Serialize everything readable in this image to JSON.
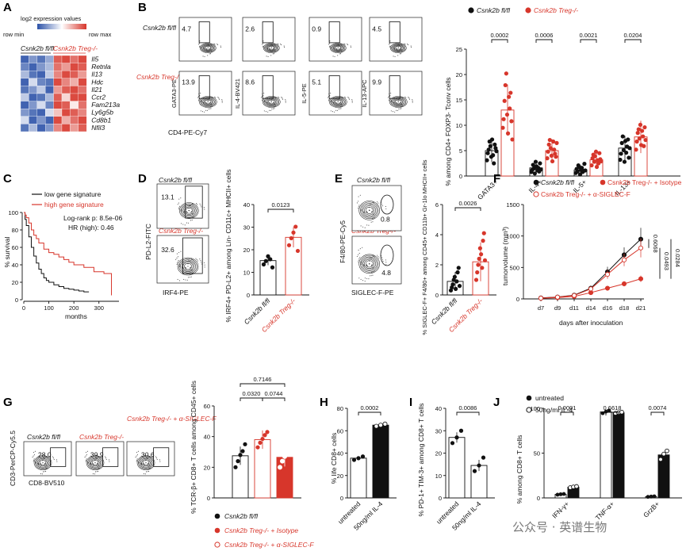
{
  "colors": {
    "red": "#d7362b",
    "pink": "#ef8a80",
    "black": "#111111",
    "blue": "#2c52a8",
    "lblue": "#a7b8e0",
    "lred": "#e99a93"
  },
  "panelA": {
    "letter": "A",
    "legend_title": "log2 expression values",
    "row_min": "row min",
    "row_max": "row max",
    "group1": "Csnk2b fl/fl",
    "group2": "Csnk2b Treg-/-",
    "genes": [
      "Il5",
      "Retnla",
      "Il13",
      "Hdc",
      "Il21",
      "Ccr2",
      "Fam213a",
      "Ly6g5b",
      "Cd8b1",
      "Nfil3"
    ],
    "matrix": [
      [
        -0.9,
        -0.6,
        -0.8,
        -0.5,
        0.8,
        0.9,
        0.7,
        0.9
      ],
      [
        -0.7,
        -0.9,
        -0.6,
        -0.4,
        0.7,
        0.5,
        0.9,
        0.8
      ],
      [
        -0.4,
        -0.8,
        -0.9,
        -0.3,
        0.6,
        0.9,
        0.8,
        0.5
      ],
      [
        -0.9,
        -0.2,
        -0.7,
        -0.8,
        0.9,
        0.6,
        0.4,
        0.9
      ],
      [
        -0.8,
        -0.6,
        -0.3,
        -0.9,
        0.5,
        0.8,
        0.9,
        0.7
      ],
      [
        -0.3,
        -0.9,
        -0.8,
        -0.4,
        0.8,
        0.2,
        0.9,
        0.9
      ],
      [
        -0.9,
        -0.6,
        -0.2,
        -0.7,
        0.9,
        0.8,
        0.1,
        0.7
      ],
      [
        -0.6,
        -0.8,
        -0.9,
        -0.2,
        0.3,
        0.9,
        0.8,
        0.6
      ],
      [
        -0.2,
        -0.9,
        -0.6,
        -0.9,
        0.9,
        0.4,
        0.7,
        0.9
      ],
      [
        -0.8,
        -0.4,
        -0.9,
        -0.6,
        0.6,
        0.9,
        0.5,
        0.8
      ]
    ]
  },
  "panelB": {
    "letter": "B",
    "row1": "Csnk2b fl/fl",
    "row2": "Csnk2b Treg-/-",
    "xlabel": "CD4-PE-Cy7",
    "ylabels": [
      "GATA3-PE",
      "IL-4-BV421",
      "IL-5-PE",
      "IL-13-APC"
    ],
    "pct_top": [
      "4.7",
      "2.6",
      "0.9",
      "4.5"
    ],
    "pct_bot": [
      "13.9",
      "8.6",
      "5.1",
      "9.9"
    ],
    "legend": [
      "Csnk2b fl/fl",
      "Csnk2b Treg-/-"
    ],
    "chart_data": {
      "type": "scatter-bar",
      "ylabel": "% among CD4+ FOXP3- Tconv cells",
      "categories": [
        "GATA3+",
        "IL-4+",
        "IL-5+",
        "IL-13+"
      ],
      "ylim": [
        0,
        25
      ],
      "yticks": [
        0,
        5,
        10,
        15,
        20,
        25
      ],
      "pvalues": [
        "0.0002",
        "0.0006",
        "0.0021",
        "0.0204"
      ],
      "series": [
        {
          "name": "Csnk2b fl/fl",
          "means": [
            5.0,
            1.6,
            1.2,
            5.5
          ],
          "points": [
            [
              3.1,
              4.5,
              5.2,
              6.8,
              5.9,
              3.8,
              7.2,
              4.1,
              2.5,
              6.2,
              5.5,
              4.9
            ],
            [
              0.8,
              1.2,
              2.2,
              1.5,
              0.5,
              2.8,
              1.9,
              1.1,
              1.6,
              0.9,
              2.5,
              1.3
            ],
            [
              0.6,
              1.4,
              0.9,
              2.1,
              1.8,
              0.3,
              1.2,
              1.6,
              0.8,
              1.0,
              2.4,
              1.1
            ],
            [
              3.2,
              4.4,
              6.5,
              7.8,
              5.1,
              2.8,
              6.9,
              4.6,
              5.8,
              7.2,
              3.6,
              5.5
            ]
          ]
        },
        {
          "name": "Csnk2b Treg-/-",
          "means": [
            13.0,
            5.0,
            3.2,
            7.7
          ],
          "points": [
            [
              9.5,
              11.2,
              14.8,
              17.9,
              20.2,
              12.1,
              8.4,
              15.6,
              13.3,
              16.4,
              10.8,
              7.2
            ],
            [
              3.5,
              4.8,
              6.2,
              7.1,
              5.5,
              4.0,
              2.9,
              6.8,
              5.2,
              4.4,
              3.8,
              6.5
            ],
            [
              2.1,
              3.5,
              4.2,
              2.8,
              3.9,
              4.8,
              1.8,
              3.1,
              2.5,
              4.5,
              3.3,
              2.9
            ],
            [
              5.2,
              6.8,
              8.5,
              9.2,
              7.4,
              10.1,
              6.1,
              8.9,
              7.8,
              5.9,
              9.6,
              7.1
            ]
          ]
        }
      ]
    }
  },
  "panelC": {
    "letter": "C",
    "legend": [
      "low gene signature",
      "high gene signature"
    ],
    "stats": [
      "Log-rank p: 8.5e-06",
      "HR (high): 0.46"
    ],
    "chart_data": {
      "type": "line",
      "xlabel": "months",
      "ylabel": "% survival",
      "xlim": [
        0,
        380
      ],
      "ylim": [
        0,
        100
      ],
      "xticks": [
        0,
        100,
        200,
        300
      ],
      "yticks": [
        0,
        20,
        40,
        60,
        80,
        100
      ],
      "series": [
        {
          "name": "low gene signature",
          "x": [
            0,
            5,
            10,
            20,
            30,
            40,
            50,
            60,
            70,
            80,
            90,
            100,
            120,
            140,
            160,
            180,
            200,
            220,
            240,
            260
          ],
          "y": [
            100,
            92,
            85,
            72,
            60,
            50,
            42,
            35,
            30,
            25,
            22,
            20,
            17,
            15,
            13,
            12,
            11,
            10,
            9,
            9
          ]
        },
        {
          "name": "high gene signature",
          "x": [
            0,
            5,
            10,
            20,
            30,
            40,
            50,
            60,
            80,
            100,
            120,
            140,
            160,
            180,
            200,
            240,
            280,
            320,
            350
          ],
          "y": [
            100,
            97,
            94,
            88,
            80,
            74,
            70,
            65,
            58,
            54,
            52,
            49,
            46,
            43,
            40,
            37,
            32,
            30,
            5
          ]
        }
      ]
    }
  },
  "panelD": {
    "letter": "D",
    "row1": "Csnk2b fl/fl",
    "row2": "Csnk2b Treg-/-",
    "pct": [
      "13.1",
      "32.6"
    ],
    "xlabel": "IRF4-PE",
    "ylabel": "PD-L2-FITC",
    "chart_data": {
      "type": "scatter-bar",
      "ylabel": "% IRF4+ PD-L2+ among Lin- CD11c+ MHCII+ cells",
      "categories": [
        "Csnk2b fl/fl",
        "Csnk2b Treg-/-"
      ],
      "ylim": [
        0,
        40
      ],
      "yticks": [
        0,
        10,
        20,
        30,
        40
      ],
      "pvalue": "0.0123",
      "means": [
        15.2,
        25.5
      ],
      "points": [
        [
          13.5,
          15.0,
          17.1,
          15.8,
          12.2
        ],
        [
          22.0,
          25.1,
          27.6,
          30.2,
          19.5
        ]
      ]
    }
  },
  "panelE": {
    "letter": "E",
    "row1": "Csnk2b fl/fl",
    "row2": "Csnk2b Treg-/-",
    "pct": [
      "0.8",
      "4.8"
    ],
    "xlabel": "SIGLEC-F-PE",
    "ylabel": "F4/80-PE-Cy5",
    "chart_data": {
      "type": "scatter-bar",
      "ylabel": "% SIGLEC-F+ F4/80+ among CD45+ CD11b+ Gr-1lo MHCII+ cells",
      "categories": [
        "Csnk2b fl/fl",
        "Csnk2b Treg-/-"
      ],
      "ylim": [
        0,
        6
      ],
      "yticks": [
        0,
        2,
        4,
        6
      ],
      "pvalue": "0.0026",
      "means": [
        0.9,
        2.2
      ],
      "points": [
        [
          0.3,
          0.5,
          0.7,
          1.0,
          1.2,
          0.4,
          0.9,
          1.5,
          1.8,
          0.6
        ],
        [
          1.0,
          1.5,
          2.0,
          2.4,
          3.1,
          2.7,
          1.8,
          3.6,
          4.1,
          2.3
        ]
      ]
    }
  },
  "panelF": {
    "letter": "F",
    "legend": [
      "Csnk2b fl/fl",
      "Csnk2b Treg-/- + Isotype",
      "Csnk2b Treg-/- + α-SIGLEC-F"
    ],
    "pvalues": [
      "0.6068",
      "0.0493",
      "0.0284"
    ],
    "chart_data": {
      "type": "line",
      "xlabel": "days after inoculation",
      "ylabel": "tumorvolume (mm³)",
      "categories": [
        "d7",
        "d9",
        "d11",
        "d14",
        "d16",
        "d18",
        "d21"
      ],
      "ylim": [
        0,
        1500
      ],
      "yticks": [
        0,
        500,
        1000,
        1500
      ],
      "series": [
        {
          "name": "Csnk2b fl/fl",
          "values": [
            15,
            30,
            60,
            170,
            430,
            700,
            950
          ],
          "err": [
            5,
            10,
            15,
            40,
            80,
            120,
            180
          ]
        },
        {
          "name": "Csnk2b Treg-/- + Isotype",
          "values": [
            10,
            20,
            40,
            100,
            170,
            240,
            320
          ],
          "err": [
            4,
            6,
            10,
            20,
            30,
            40,
            50
          ]
        },
        {
          "name": "Csnk2b Treg-/- + α-SIGLEC-F",
          "values": [
            12,
            28,
            55,
            160,
            390,
            620,
            810
          ],
          "err": [
            5,
            8,
            14,
            35,
            70,
            100,
            150
          ]
        }
      ]
    }
  },
  "panelG": {
    "letter": "G",
    "cols": [
      "Csnk2b fl/fl",
      "Csnk2b Treg-/-",
      "Csnk2b Treg-/- + α-SIGLEC-F"
    ],
    "pct": [
      "28.0",
      "39.9",
      "30.6"
    ],
    "xlabel": "CD8-BV510",
    "ylabel": "CD3-PerCP-Cy5.5",
    "legend": [
      "Csnk2b fl/fl",
      "Csnk2b Treg-/- + Isotype",
      "Csnk2b Treg-/- + α-SIGLEC-F"
    ],
    "chart_data": {
      "type": "scatter-bar",
      "ylabel": "% TCR-β+ CD8+ T cells among CD45+ cells",
      "categories": [
        "Csnk2b fl/fl",
        "Csnk2b Treg-/- + Isotype",
        "Csnk2b Treg-/- + α-SIGLEC-F"
      ],
      "ylim": [
        0,
        60
      ],
      "yticks": [
        0,
        20,
        40,
        60
      ],
      "pvalues": [
        "0.7146",
        "0.0320",
        "0.0744"
      ],
      "means": [
        27.5,
        38.0,
        26.5
      ],
      "points": [
        [
          20.0,
          24.0,
          28.0,
          30.5,
          35.0
        ],
        [
          33.0,
          36.0,
          38.5,
          41.0,
          43.0
        ],
        [
          20.0,
          24.0,
          27.0,
          30.0,
          33.0
        ]
      ]
    }
  },
  "panelH": {
    "letter": "H",
    "chart_data": {
      "type": "scatter-bar",
      "ylabel": "% life CD8+ cells",
      "categories": [
        "untreated",
        "50ng/ml IL-4"
      ],
      "ylim": [
        0,
        80
      ],
      "yticks": [
        0,
        20,
        40,
        60,
        80
      ],
      "pvalue": "0.0002",
      "means": [
        35.5,
        65.0
      ],
      "points": [
        [
          34.0,
          35.5,
          37.0
        ],
        [
          64.0,
          65.0,
          66.0
        ]
      ]
    }
  },
  "panelI": {
    "letter": "I",
    "chart_data": {
      "type": "scatter-bar",
      "ylabel": "% PD-1+ TIM-3+ among CD8+ T cells",
      "categories": [
        "untreated",
        "50ng/ml IL-4"
      ],
      "ylim": [
        0,
        40
      ],
      "yticks": [
        0,
        10,
        20,
        30,
        40
      ],
      "pvalue": "0.0086",
      "means": [
        27.0,
        14.5
      ],
      "points": [
        [
          24.5,
          27.0,
          30.0
        ],
        [
          12.0,
          14.5,
          18.0
        ]
      ]
    }
  },
  "panelJ": {
    "letter": "J",
    "legend": [
      "untreated",
      "50ng/ml IL-4"
    ],
    "chart_data": {
      "type": "bar",
      "ylabel": "% among CD8+ T cells",
      "categories": [
        "IFN-γ+",
        "TNF-α+",
        "GrzB+"
      ],
      "ylim": [
        0,
        100
      ],
      "yticks": [
        0,
        50,
        100
      ],
      "pvalues": [
        "0.0001",
        "0.6618",
        "0.0074"
      ],
      "series": [
        {
          "name": "untreated",
          "values": [
            4,
            96,
            1.5
          ],
          "points": [
            [
              3.6,
              4.1,
              4.4
            ],
            [
              94.5,
              96.3,
              97.5
            ],
            [
              1.2,
              1.5,
              1.8
            ]
          ]
        },
        {
          "name": "50ng/ml IL-4",
          "values": [
            12,
            95,
            48
          ],
          "points": [
            [
              11.5,
              12.3,
              12.8
            ],
            [
              94.5,
              95.2,
              95.8
            ],
            [
              43.0,
              49.0,
              52.5
            ]
          ]
        }
      ]
    }
  },
  "watermark": "公众号 · 英谱生物"
}
